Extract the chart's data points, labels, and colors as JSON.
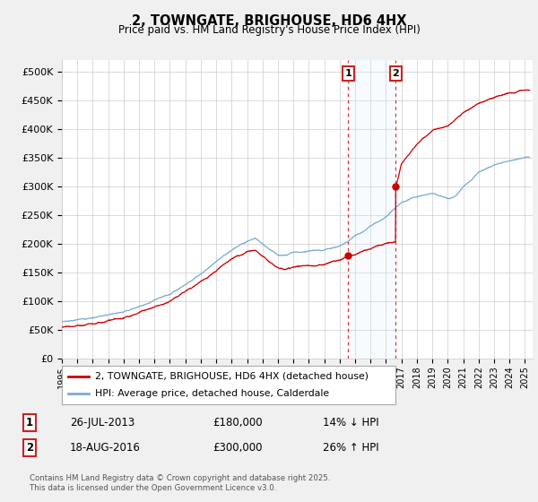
{
  "title": "2, TOWNGATE, BRIGHOUSE, HD6 4HX",
  "subtitle": "Price paid vs. HM Land Registry's House Price Index (HPI)",
  "ylim": [
    0,
    520000
  ],
  "yticks": [
    0,
    50000,
    100000,
    150000,
    200000,
    250000,
    300000,
    350000,
    400000,
    450000,
    500000
  ],
  "ytick_labels": [
    "£0",
    "£50K",
    "£100K",
    "£150K",
    "£200K",
    "£250K",
    "£300K",
    "£350K",
    "£400K",
    "£450K",
    "£500K"
  ],
  "xlim_start": 1995.0,
  "xlim_end": 2025.5,
  "red_line_color": "#cc0000",
  "blue_line_color": "#7aabcf",
  "shade_color": "#ddeeff",
  "transaction1_date": 2013.56,
  "transaction1_label": "1",
  "transaction1_price": 180000,
  "transaction1_hpi_text": "14% ↓ HPI",
  "transaction1_date_text": "26-JUL-2013",
  "transaction2_date": 2016.63,
  "transaction2_label": "2",
  "transaction2_price": 300000,
  "transaction2_hpi_text": "26% ↑ HPI",
  "transaction2_date_text": "18-AUG-2016",
  "legend_label_red": "2, TOWNGATE, BRIGHOUSE, HD6 4HX (detached house)",
  "legend_label_blue": "HPI: Average price, detached house, Calderdale",
  "footnote": "Contains HM Land Registry data © Crown copyright and database right 2025.\nThis data is licensed under the Open Government Licence v3.0.",
  "background_color": "#f0f0f0",
  "plot_background": "#ffffff",
  "grid_color": "#cccccc",
  "blue_cps_x": [
    1995,
    1996,
    1997,
    1998,
    1999,
    2000,
    2001,
    2002,
    2003,
    2004,
    2005,
    2006,
    2007,
    2007.5,
    2008,
    2008.5,
    2009,
    2009.5,
    2010,
    2011,
    2012,
    2013,
    2013.5,
    2014,
    2014.5,
    2015,
    2015.5,
    2016,
    2016.5,
    2017,
    2017.5,
    2018,
    2019,
    2020,
    2020.5,
    2021,
    2021.5,
    2022,
    2022.5,
    2023,
    2024,
    2025
  ],
  "blue_cps_y": [
    65000,
    68000,
    72000,
    77000,
    83000,
    92000,
    102000,
    113000,
    130000,
    148000,
    168000,
    190000,
    205000,
    210000,
    200000,
    190000,
    182000,
    180000,
    185000,
    188000,
    190000,
    198000,
    205000,
    215000,
    222000,
    232000,
    240000,
    248000,
    260000,
    272000,
    278000,
    282000,
    288000,
    278000,
    282000,
    298000,
    310000,
    325000,
    332000,
    338000,
    345000,
    352000
  ],
  "red_cps_x": [
    1995,
    1996,
    1997,
    1998,
    1999,
    2000,
    2001,
    2002,
    2003,
    2004,
    2005,
    2006,
    2007,
    2007.5,
    2008,
    2008.5,
    2009,
    2009.5,
    2010,
    2011,
    2012,
    2013,
    2013.56,
    2013.57,
    2014,
    2015,
    2016,
    2016.62,
    2016.63,
    2016.64,
    2017,
    2018,
    2019,
    2020,
    2021,
    2022,
    2023,
    2024,
    2025
  ],
  "red_cps_y": [
    55000,
    58000,
    62000,
    67000,
    72000,
    80000,
    90000,
    100000,
    118000,
    135000,
    152000,
    175000,
    188000,
    192000,
    180000,
    168000,
    158000,
    155000,
    160000,
    163000,
    165000,
    172000,
    180000,
    180000,
    182000,
    192000,
    200000,
    205000,
    300000,
    300000,
    340000,
    375000,
    398000,
    405000,
    428000,
    445000,
    455000,
    462000,
    468000
  ]
}
